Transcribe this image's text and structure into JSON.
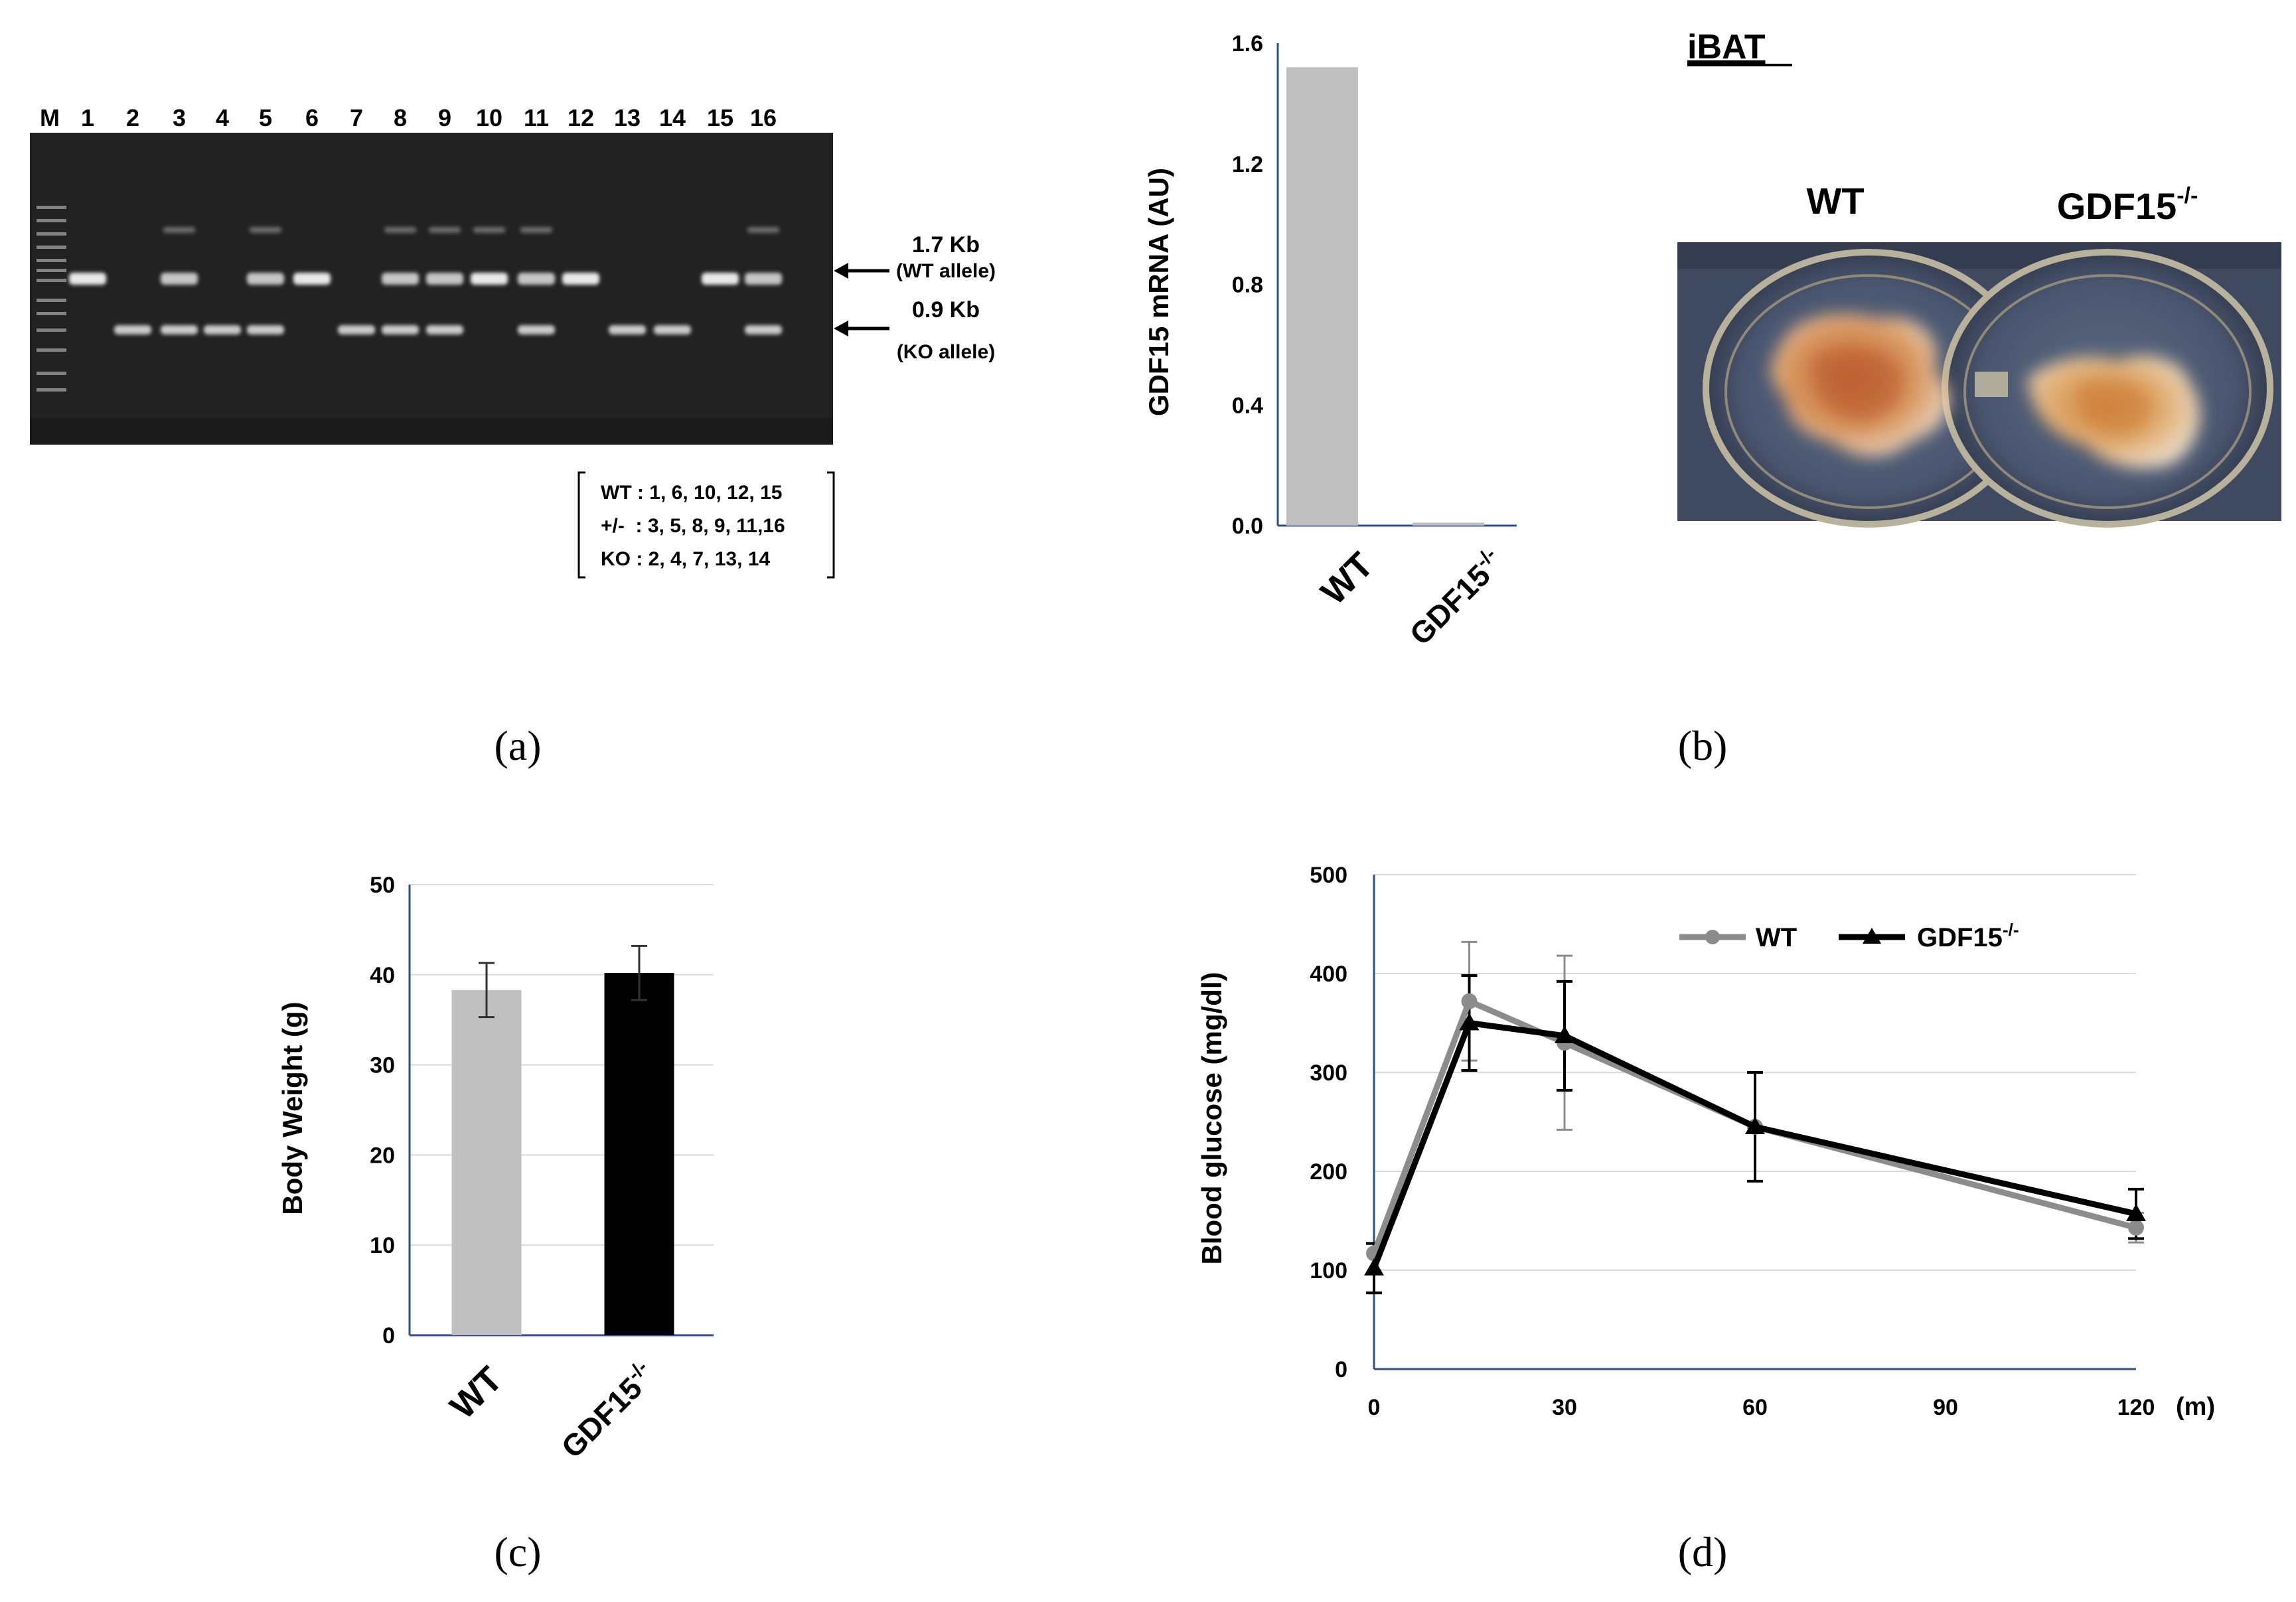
{
  "panel_a": {
    "lanes": [
      "M",
      "1",
      "2",
      "3",
      "4",
      "5",
      "6",
      "7",
      "8",
      "9",
      "10",
      "11",
      "12",
      "13",
      "14",
      "15",
      "16"
    ],
    "wt_band": {
      "size": "1.7 Kb",
      "label": "(WT allele)",
      "lanes": [
        1,
        6,
        10,
        12,
        15,
        3,
        5,
        8,
        9,
        11,
        16
      ]
    },
    "ko_band": {
      "size": "0.9 Kb",
      "label": "(KO allele)",
      "lanes": [
        2,
        4,
        7,
        13,
        14,
        3,
        5,
        8,
        9,
        11,
        16
      ]
    },
    "legend": [
      "WT : 1, 6, 10, 12, 15",
      "+/-  : 3, 5, 8, 9, 11,16",
      "KO : 2, 4, 7, 13, 14"
    ],
    "caption": "(a)"
  },
  "panel_b": {
    "caption": "(b)",
    "photo_title": "iBAT",
    "photo_labels": {
      "left": "WT",
      "right": "GDF15",
      "right_sup": "-/-"
    }
  },
  "panel_c": {
    "caption": "(c)"
  },
  "panel_d": {
    "caption": "(d)"
  },
  "chart_data": [
    {
      "id": "b",
      "type": "bar",
      "categories": [
        "WT",
        "GDF15-/-"
      ],
      "category_sup": [
        "",
        "-/-"
      ],
      "values": [
        1.52,
        0.01
      ],
      "colors": [
        "#bfbfbf",
        "#bfbfbf"
      ],
      "ylabel": "GDF15 mRNA (AU)",
      "ylim": [
        0,
        1.6
      ],
      "yticks": [
        "0.0",
        "0.4",
        "0.8",
        "1.2",
        "1.6"
      ],
      "grid": false
    },
    {
      "id": "c",
      "type": "bar",
      "categories": [
        "WT",
        "GDF15-/-"
      ],
      "category_sup": [
        "",
        "-/-"
      ],
      "values": [
        38.3,
        40.2
      ],
      "errors": [
        3.0,
        3.0
      ],
      "colors": [
        "#bfbfbf",
        "#000000"
      ],
      "ylabel": "Body Weight (g)",
      "ylim": [
        0,
        50
      ],
      "yticks": [
        "0",
        "10",
        "20",
        "30",
        "40",
        "50"
      ],
      "grid": true
    },
    {
      "id": "d",
      "type": "line",
      "x": [
        0,
        15,
        30,
        60,
        120
      ],
      "xticks": [
        "0",
        "30",
        "60",
        "90",
        "120"
      ],
      "xunit": "(m)",
      "ylabel": "Blood glucose (mg/dl)",
      "ylim": [
        0,
        500
      ],
      "yticks": [
        "0",
        "100",
        "200",
        "300",
        "400",
        "500"
      ],
      "grid": true,
      "legend_position": "top-right",
      "series": [
        {
          "name": "WT",
          "sup": "",
          "values": [
            117,
            372,
            330,
            245,
            143
          ],
          "errors": [
            0,
            60,
            88,
            55,
            15
          ],
          "color": "#8c8c8c",
          "marker": "circle"
        },
        {
          "name": "GDF15",
          "sup": "-/-",
          "values": [
            102,
            350,
            337,
            245,
            157
          ],
          "errors": [
            25,
            48,
            55,
            55,
            25
          ],
          "color": "#000000",
          "marker": "triangle"
        }
      ]
    }
  ]
}
